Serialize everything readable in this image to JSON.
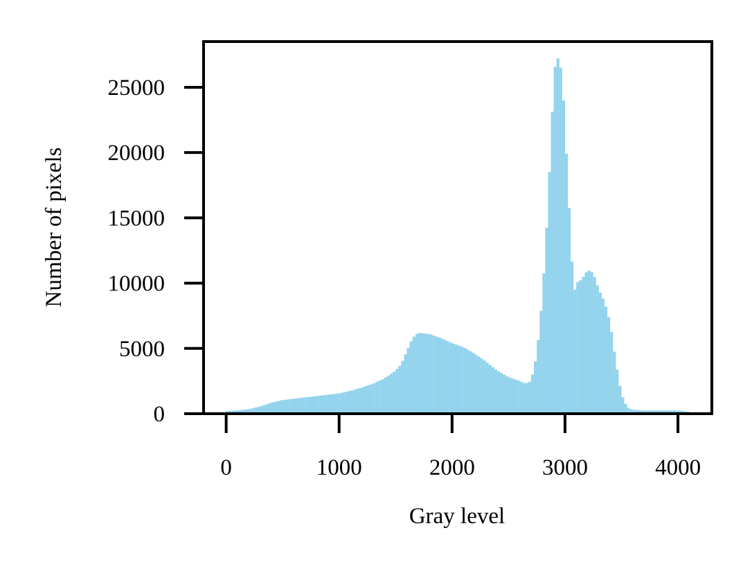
{
  "chart_data": {
    "type": "bar",
    "title": "",
    "xlabel": "Gray level",
    "ylabel": "Number of pixels",
    "xlim": [
      -200,
      4300
    ],
    "ylim": [
      0,
      28500
    ],
    "x_ticks": [
      0,
      1000,
      2000,
      3000,
      4000
    ],
    "y_ticks": [
      0,
      5000,
      10000,
      15000,
      20000,
      25000
    ],
    "grid": false,
    "legend": "none",
    "bar_color": "#87CEEB",
    "bin_width": 25,
    "series": [
      {
        "points": [
          [
            0,
            200
          ],
          [
            100,
            250
          ],
          [
            200,
            350
          ],
          [
            300,
            550
          ],
          [
            400,
            850
          ],
          [
            500,
            1050
          ],
          [
            600,
            1150
          ],
          [
            700,
            1250
          ],
          [
            800,
            1350
          ],
          [
            900,
            1450
          ],
          [
            1000,
            1550
          ],
          [
            1100,
            1750
          ],
          [
            1200,
            2000
          ],
          [
            1300,
            2300
          ],
          [
            1400,
            2700
          ],
          [
            1500,
            3300
          ],
          [
            1550,
            3800
          ],
          [
            1600,
            4800
          ],
          [
            1650,
            5800
          ],
          [
            1700,
            6200
          ],
          [
            1800,
            6100
          ],
          [
            1900,
            5800
          ],
          [
            2000,
            5400
          ],
          [
            2100,
            5100
          ],
          [
            2200,
            4600
          ],
          [
            2300,
            4000
          ],
          [
            2400,
            3300
          ],
          [
            2500,
            2800
          ],
          [
            2600,
            2500
          ],
          [
            2650,
            2300
          ],
          [
            2700,
            2500
          ],
          [
            2750,
            4500
          ],
          [
            2800,
            9000
          ],
          [
            2850,
            16000
          ],
          [
            2880,
            22000
          ],
          [
            2900,
            25000
          ],
          [
            2920,
            27500
          ],
          [
            2950,
            27000
          ],
          [
            2975,
            26000
          ],
          [
            3000,
            22000
          ],
          [
            3030,
            17000
          ],
          [
            3060,
            12000
          ],
          [
            3080,
            9200
          ],
          [
            3100,
            10000
          ],
          [
            3150,
            10300
          ],
          [
            3200,
            11000
          ],
          [
            3250,
            10800
          ],
          [
            3300,
            9500
          ],
          [
            3350,
            8600
          ],
          [
            3400,
            7000
          ],
          [
            3450,
            4000
          ],
          [
            3500,
            1500
          ],
          [
            3550,
            500
          ],
          [
            3600,
            300
          ],
          [
            3700,
            250
          ],
          [
            3800,
            250
          ],
          [
            3900,
            250
          ],
          [
            4000,
            250
          ],
          [
            4050,
            200
          ],
          [
            4100,
            150
          ]
        ]
      }
    ]
  }
}
